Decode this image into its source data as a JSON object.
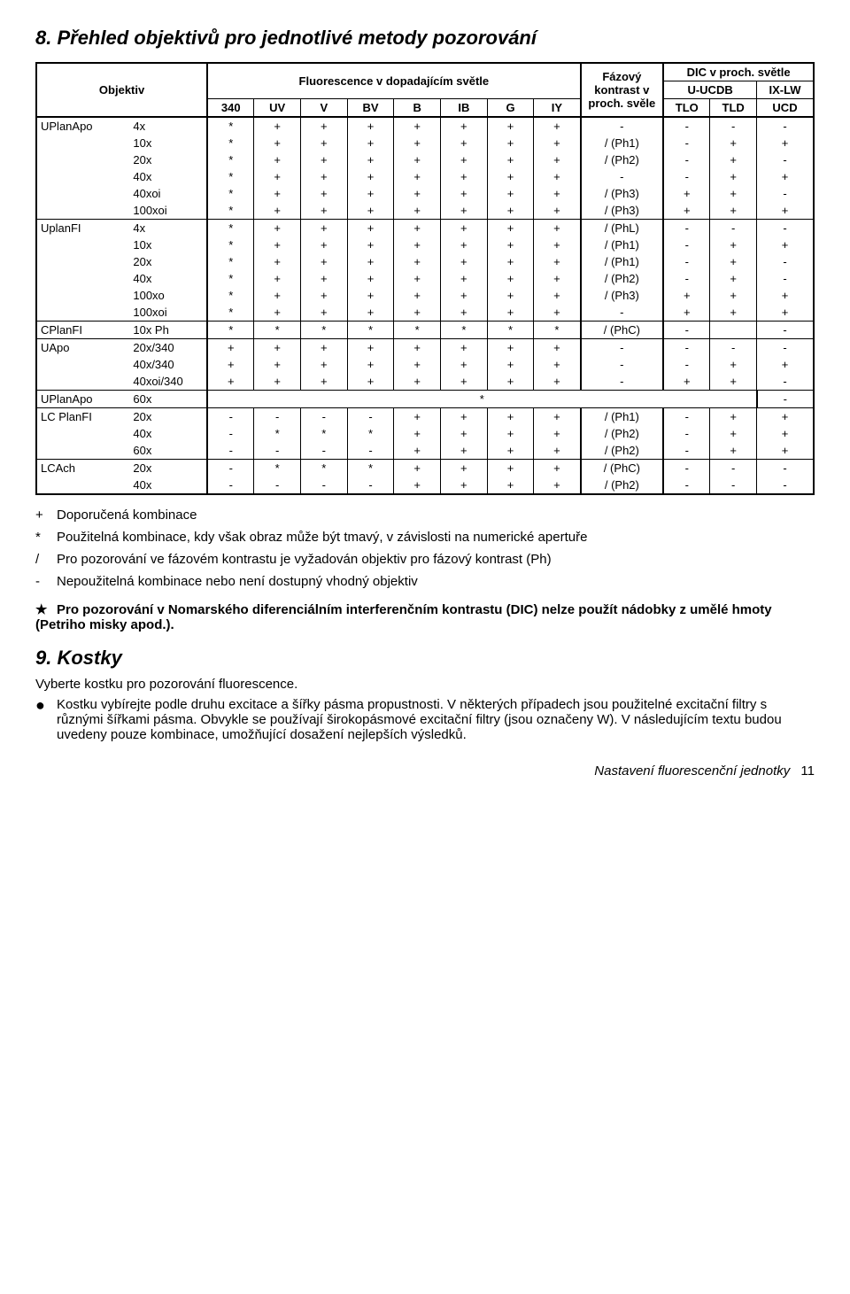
{
  "titles": {
    "h8": "8. Přehled objektivů pro jednotlivé metody pozorování",
    "h9": "9. Kostky"
  },
  "table": {
    "head": {
      "objektiv": "Objektiv",
      "fluor": "Fluorescence v dopadajícím světle",
      "phase": "Fázový kontrast v proch. svěle",
      "dic": "DIC v proch. světle",
      "uucdb": "U-UCDB",
      "ixlw": "IX-LW",
      "c340": "340",
      "cUV": "UV",
      "cV": "V",
      "cBV": "BV",
      "cB": "B",
      "cIB": "IB",
      "cG": "G",
      "cIY": "IY",
      "tlo": "TLO",
      "tld": "TLD",
      "ucd": "UCD"
    },
    "groups": [
      {
        "name": "UPlanApo",
        "rows": [
          {
            "m": "4x",
            "c": [
              "*",
              "+",
              "+",
              "+",
              "+",
              "+",
              "+",
              "+"
            ],
            "p": "-",
            "t1": "-",
            "t2": "-",
            "u": "-"
          },
          {
            "m": "10x",
            "c": [
              "*",
              "+",
              "+",
              "+",
              "+",
              "+",
              "+",
              "+"
            ],
            "p": "/ (Ph1)",
            "t1": "-",
            "t2": "+",
            "u": "+"
          },
          {
            "m": "20x",
            "c": [
              "*",
              "+",
              "+",
              "+",
              "+",
              "+",
              "+",
              "+"
            ],
            "p": "/ (Ph2)",
            "t1": "-",
            "t2": "+",
            "u": "-"
          },
          {
            "m": "40x",
            "c": [
              "*",
              "+",
              "+",
              "+",
              "+",
              "+",
              "+",
              "+"
            ],
            "p": "-",
            "t1": "-",
            "t2": "+",
            "u": "+"
          },
          {
            "m": "40xoi",
            "c": [
              "*",
              "+",
              "+",
              "+",
              "+",
              "+",
              "+",
              "+"
            ],
            "p": "/ (Ph3)",
            "t1": "+",
            "t2": "+",
            "u": "-"
          },
          {
            "m": "100xoi",
            "c": [
              "*",
              "+",
              "+",
              "+",
              "+",
              "+",
              "+",
              "+"
            ],
            "p": "/ (Ph3)",
            "t1": "+",
            "t2": "+",
            "u": "+"
          }
        ]
      },
      {
        "name": "UplanFI",
        "rows": [
          {
            "m": "4x",
            "c": [
              "*",
              "+",
              "+",
              "+",
              "+",
              "+",
              "+",
              "+"
            ],
            "p": "/ (PhL)",
            "t1": "-",
            "t2": "-",
            "u": "-"
          },
          {
            "m": "10x",
            "c": [
              "*",
              "+",
              "+",
              "+",
              "+",
              "+",
              "+",
              "+"
            ],
            "p": "/ (Ph1)",
            "t1": "-",
            "t2": "+",
            "u": "+"
          },
          {
            "m": "20x",
            "c": [
              "*",
              "+",
              "+",
              "+",
              "+",
              "+",
              "+",
              "+"
            ],
            "p": "/ (Ph1)",
            "t1": "-",
            "t2": "+",
            "u": "-"
          },
          {
            "m": "40x",
            "c": [
              "*",
              "+",
              "+",
              "+",
              "+",
              "+",
              "+",
              "+"
            ],
            "p": "/ (Ph2)",
            "t1": "-",
            "t2": "+",
            "u": "-"
          },
          {
            "m": "100xo",
            "c": [
              "*",
              "+",
              "+",
              "+",
              "+",
              "+",
              "+",
              "+"
            ],
            "p": "/ (Ph3)",
            "t1": "+",
            "t2": "+",
            "u": "+"
          },
          {
            "m": "100xoi",
            "c": [
              "*",
              "+",
              "+",
              "+",
              "+",
              "+",
              "+",
              "+"
            ],
            "p": "-",
            "t1": "+",
            "t2": "+",
            "u": "+"
          }
        ]
      },
      {
        "name": "CPlanFI",
        "rows": [
          {
            "m": "10x Ph",
            "c": [
              "*",
              "*",
              "*",
              "*",
              "*",
              "*",
              "*",
              "*"
            ],
            "p": "/ (PhC)",
            "t1": "-",
            "t2": "",
            "u": "-"
          }
        ]
      },
      {
        "name": "UApo",
        "rows": [
          {
            "m": "20x/340",
            "c": [
              "+",
              "+",
              "+",
              "+",
              "+",
              "+",
              "+",
              "+"
            ],
            "p": "-",
            "t1": "-",
            "t2": "-",
            "u": "-"
          },
          {
            "m": "40x/340",
            "c": [
              "+",
              "+",
              "+",
              "+",
              "+",
              "+",
              "+",
              "+"
            ],
            "p": "-",
            "t1": "-",
            "t2": "+",
            "u": "+"
          },
          {
            "m": "40xoi/340",
            "c": [
              "+",
              "+",
              "+",
              "+",
              "+",
              "+",
              "+",
              "+"
            ],
            "p": "-",
            "t1": "+",
            "t2": "+",
            "u": "-"
          }
        ]
      },
      {
        "name": "UPlanApo",
        "rows": [
          {
            "m": "60x",
            "span": "*",
            "u": "-"
          }
        ]
      },
      {
        "name": "LC PlanFI",
        "rows": [
          {
            "m": "20x",
            "c": [
              "-",
              "-",
              "-",
              "-",
              "+",
              "+",
              "+",
              "+"
            ],
            "p": "/ (Ph1)",
            "t1": "-",
            "t2": "+",
            "u": "+"
          },
          {
            "m": "40x",
            "c": [
              "-",
              "*",
              "*",
              "*",
              "+",
              "+",
              "+",
              "+"
            ],
            "p": "/ (Ph2)",
            "t1": "-",
            "t2": "+",
            "u": "+"
          },
          {
            "m": "60x",
            "c": [
              "-",
              "-",
              "-",
              "-",
              "+",
              "+",
              "+",
              "+"
            ],
            "p": "/ (Ph2)",
            "t1": "-",
            "t2": "+",
            "u": "+"
          }
        ]
      },
      {
        "name": "LCAch",
        "rows": [
          {
            "m": "20x",
            "c": [
              "-",
              "*",
              "*",
              "*",
              "+",
              "+",
              "+",
              "+"
            ],
            "p": "/ (PhC)",
            "t1": "-",
            "t2": "-",
            "u": "-"
          },
          {
            "m": "40x",
            "c": [
              "-",
              "-",
              "-",
              "-",
              "+",
              "+",
              "+",
              "+"
            ],
            "p": "/ (Ph2)",
            "t1": "-",
            "t2": "-",
            "u": "-"
          }
        ]
      }
    ]
  },
  "legend": [
    {
      "s": "+",
      "t": "Doporučená kombinace"
    },
    {
      "s": "*",
      "t": "Použitelná kombinace, kdy však obraz může být tmavý, v závislosti na numerické apertuře"
    },
    {
      "s": "/",
      "t": "Pro pozorování ve fázovém kontrastu je vyžadován objektiv pro fázový kontrast (Ph)"
    },
    {
      "s": "-",
      "t": "Nepoužitelná kombinace nebo není dostupný vhodný objektiv"
    }
  ],
  "boldnote": "Pro pozorování v Nomarského diferenciálním interferenčním kontrastu (DIC) nelze použít nádobky z umělé hmoty (Petriho misky apod.).",
  "kostky": {
    "p1": "Vyberte kostku pro pozorování fluorescence.",
    "b1": "Kostku vybírejte podle druhu excitace a šířky pásma propustnosti. V některých případech jsou  použitelné excitační filtry s různými šířkami pásma. Obvykle se používají širokopásmové excitační filtry (jsou označeny W). V následujícím textu budou uvedeny pouze kombinace, umožňující dosažení nejlepších výsledků."
  },
  "footer": {
    "t": "Nastavení fluorescenční jednotky",
    "p": "11"
  }
}
